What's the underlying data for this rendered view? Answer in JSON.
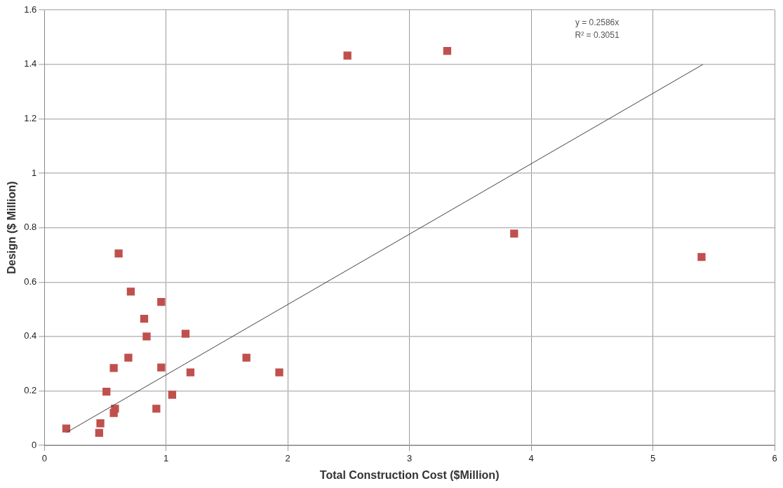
{
  "chart_data": {
    "type": "scatter",
    "xlabel": "Total Construction Cost ($Million)",
    "ylabel": "Design ($ Million)",
    "xlim": [
      0,
      6
    ],
    "xticks": [
      0,
      1,
      2,
      3,
      4,
      5,
      6
    ],
    "ylim": [
      0,
      1.6
    ],
    "yticks": [
      0,
      0.2,
      0.4,
      0.6,
      0.8,
      1,
      1.2,
      1.4,
      1.6
    ],
    "grid": true,
    "legend": false,
    "marker": "square",
    "annotations": [
      "y = 0.2586x",
      "R² = 0.3051"
    ],
    "series": [
      {
        "color": "#c0504d",
        "x": [
          0.18,
          0.45,
          0.46,
          0.57,
          0.58,
          0.51,
          0.57,
          0.69,
          0.61,
          0.71,
          0.82,
          0.84,
          0.96,
          0.96,
          0.92,
          1.05,
          1.16,
          1.2,
          1.66,
          1.93,
          2.49,
          3.31,
          3.86,
          5.4
        ],
        "values": [
          0.062,
          0.046,
          0.081,
          0.119,
          0.135,
          0.197,
          0.284,
          0.322,
          0.705,
          0.565,
          0.465,
          0.4,
          0.527,
          0.286,
          0.135,
          0.186,
          0.41,
          0.268,
          0.322,
          0.268,
          1.432,
          1.449,
          0.778,
          0.692
        ]
      },
      {
        "type": "line",
        "color": "#404040",
        "x": [
          0.18,
          5.41
        ],
        "values": [
          0.047,
          1.399
        ],
        "marker": "none"
      }
    ]
  }
}
